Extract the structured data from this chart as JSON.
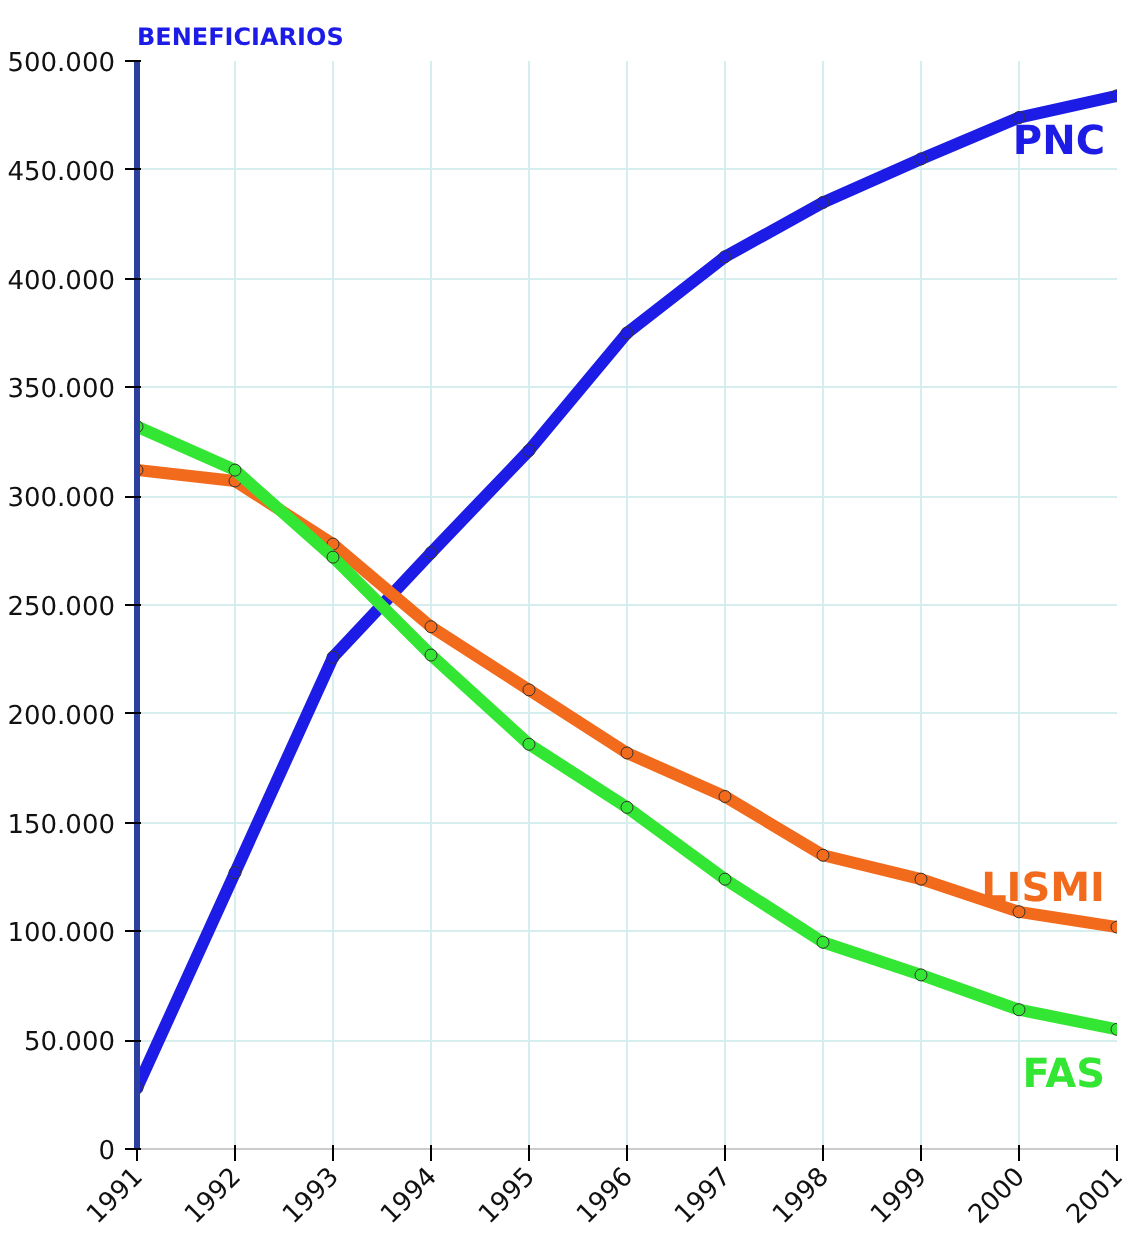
{
  "chart_data": {
    "type": "line",
    "ylabel": "BENEFICIARIOS",
    "x": [
      1991,
      1992,
      1993,
      1994,
      1995,
      1996,
      1997,
      1998,
      1999,
      2000,
      2001
    ],
    "series": [
      {
        "name": "PNC",
        "color": "#1c1ce6",
        "values": [
          28000,
          127000,
          226000,
          274000,
          321000,
          375000,
          410000,
          435000,
          455000,
          474000,
          484000
        ]
      },
      {
        "name": "LISMI",
        "color": "#f26a1c",
        "values": [
          312000,
          307000,
          278000,
          240000,
          211000,
          182000,
          162000,
          135000,
          124000,
          109000,
          102000
        ]
      },
      {
        "name": "FAS",
        "color": "#33e633",
        "values": [
          332000,
          312000,
          272000,
          227000,
          186000,
          157000,
          124000,
          95000,
          80000,
          64000,
          55000
        ]
      }
    ],
    "xlim": [
      1991,
      2001
    ],
    "ylim": [
      0,
      500000
    ],
    "xticks": [
      1991,
      1992,
      1993,
      1994,
      1995,
      1996,
      1997,
      1998,
      1999,
      2000,
      2001
    ],
    "yticks": [
      {
        "value": 0,
        "label": "0"
      },
      {
        "value": 50000,
        "label": "50.000"
      },
      {
        "value": 100000,
        "label": "100.000"
      },
      {
        "value": 150000,
        "label": "150.000"
      },
      {
        "value": 200000,
        "label": "200.000"
      },
      {
        "value": 250000,
        "label": "250.000"
      },
      {
        "value": 300000,
        "label": "300.000"
      },
      {
        "value": 350000,
        "label": "350.000"
      },
      {
        "value": 400000,
        "label": "400.000"
      },
      {
        "value": 450000,
        "label": "450.000"
      },
      {
        "value": 500000,
        "label": "500.000"
      }
    ],
    "grid": true,
    "marker": "circle",
    "line_style": "solid"
  }
}
